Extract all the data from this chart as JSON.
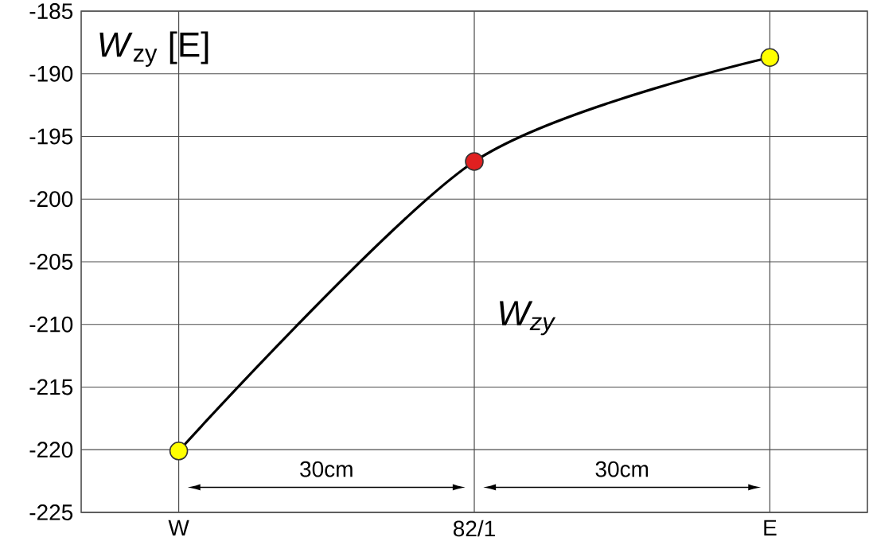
{
  "chart_data": {
    "type": "line",
    "ylabel": "*W*$_{zy}$ [E]",
    "categories": [
      "W",
      "82/1",
      "E"
    ],
    "series": [
      {
        "name": "*W*$_{zy}$",
        "color": "#000000",
        "colors": [
          "#ffff00",
          "#e02020",
          "#ffff00"
        ],
        "values": [
          -220.1,
          -197,
          -188.7
        ]
      }
    ],
    "ylim": [
      -225,
      -185
    ],
    "yticks": [
      -225,
      -220,
      -215,
      -210,
      -205,
      -200,
      -195,
      -190,
      -185
    ],
    "grid": true,
    "marker": "circle",
    "line_style": "solid",
    "annotations": [
      "30cm",
      "30cm"
    ]
  }
}
